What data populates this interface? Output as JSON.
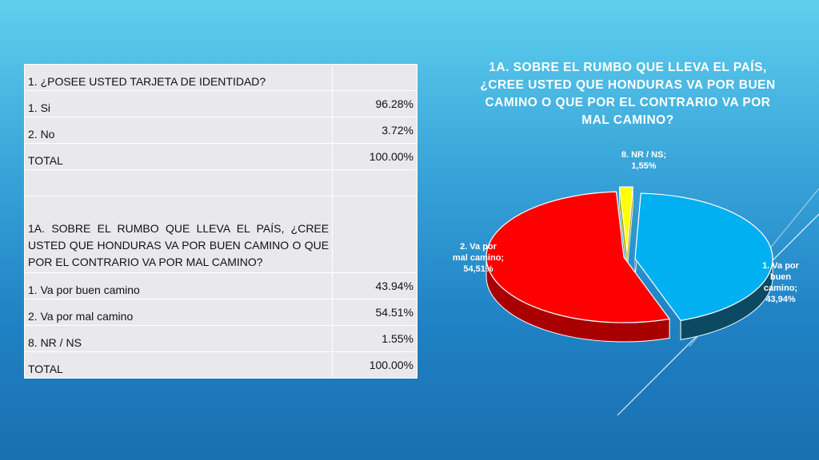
{
  "table": {
    "rows": [
      {
        "label": "1. ¿POSEE USTED TARJETA DE IDENTIDAD?",
        "value": ""
      },
      {
        "label": "1. Si",
        "value": "96.28%"
      },
      {
        "label": "2. No",
        "value": "3.72%"
      },
      {
        "label": "TOTAL",
        "value": "100.00%"
      },
      {
        "label": "",
        "value": ""
      },
      {
        "label": "1A. SOBRE EL RUMBO QUE LLEVA EL PAÍS, ¿CREE USTED QUE HONDURAS VA POR BUEN CAMINO O QUE POR EL CONTRARIO VA POR MAL CAMINO?",
        "value": ""
      },
      {
        "label": "1. Va por buen camino",
        "value": "43.94%"
      },
      {
        "label": "2. Va por mal camino",
        "value": "54.51%"
      },
      {
        "label": "8. NR / NS",
        "value": "1.55%"
      },
      {
        "label": "TOTAL",
        "value": "100.00%"
      }
    ]
  },
  "chart_data": {
    "type": "pie",
    "title": "1A. SOBRE EL RUMBO QUE LLEVA EL PAÍS, ¿CREE USTED QUE HONDURAS VA POR BUEN CAMINO O QUE POR EL CONTRARIO VA POR MAL CAMINO?",
    "slices": [
      {
        "name": "1. Va por buen camino",
        "value": 43.94,
        "label_lines": [
          "1. Va por",
          "buen",
          "camino;",
          "43,94%"
        ],
        "color": "#00b0f0",
        "side_color": "#0c4a63"
      },
      {
        "name": "2. Va por mal camino",
        "value": 54.51,
        "label_lines": [
          "2. Va por",
          "mal camino;",
          "54,51%"
        ],
        "color": "#ff0000",
        "side_color": "#a80000"
      },
      {
        "name": "8. NR / NS",
        "value": 1.55,
        "label_lines": [
          "8. NR / NS;",
          "1,55%"
        ],
        "color": "#ffff00",
        "side_color": "#a8a800"
      }
    ],
    "legend": "none"
  }
}
